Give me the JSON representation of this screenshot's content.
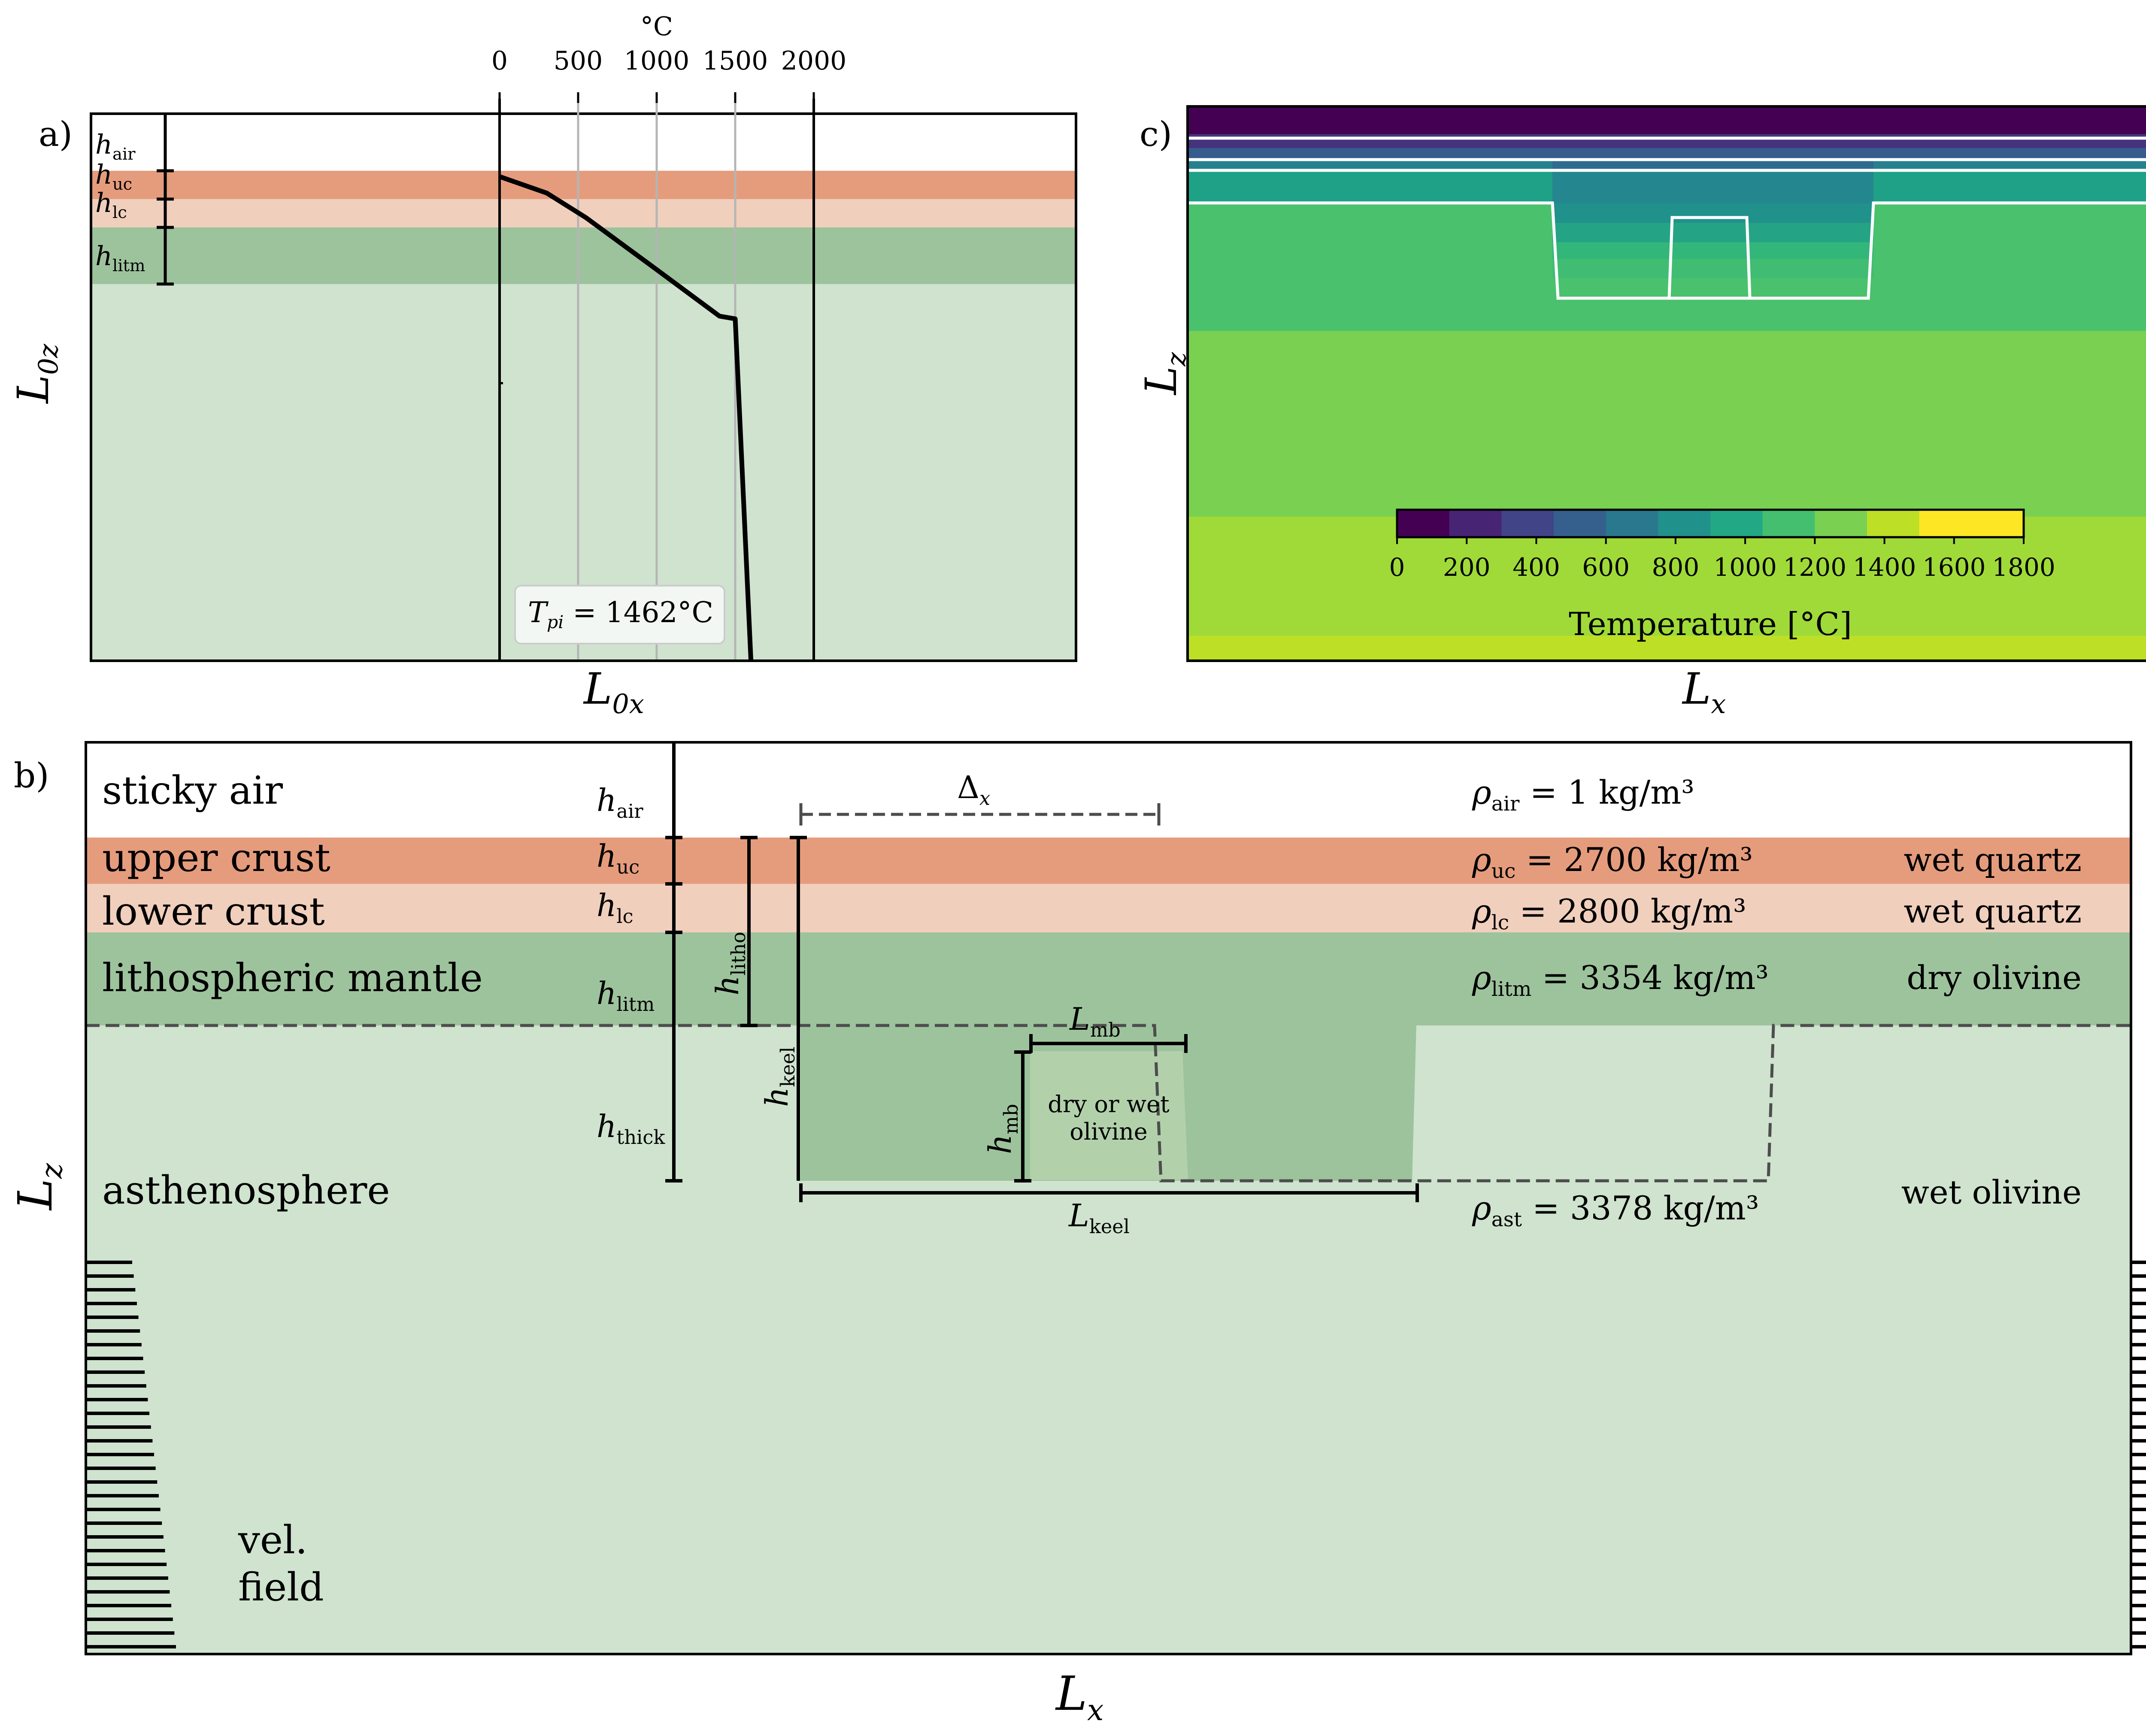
{
  "panel_a": {
    "label": "a)",
    "x_axis_label": "L",
    "x_axis_sub": "0x",
    "y_axis_label": "L",
    "y_axis_sub": "0z",
    "temp_unit": "°C",
    "temp_ticks": [
      "0",
      "500",
      "1000",
      "1500",
      "2000"
    ],
    "layer_labels": [
      {
        "main": "h",
        "sub": "air"
      },
      {
        "main": "h",
        "sub": "uc"
      },
      {
        "main": "h",
        "sub": "lc"
      },
      {
        "main": "h",
        "sub": "litm"
      }
    ],
    "legend_symbol": "T",
    "legend_sub": "pi",
    "legend_value": " = 1462°C",
    "temperature_profile": {
      "temperature_c": [
        0,
        300,
        550,
        1000,
        1400,
        1500,
        1600
      ],
      "depth_fraction": [
        0.115,
        0.145,
        0.19,
        0.285,
        0.37,
        0.375,
        1.0
      ]
    }
  },
  "panel_b": {
    "label": "b)",
    "x_axis_label": "L",
    "x_axis_sub": "x",
    "y_axis_label": "L",
    "y_axis_sub": "z",
    "layers": [
      {
        "name": "sticky air",
        "h": "h",
        "h_sub": "air",
        "rho_sub": "air",
        "rho_value": " = 1 kg/m³",
        "rheology": "",
        "color": "#ffffff"
      },
      {
        "name": "upper crust",
        "h": "h",
        "h_sub": "uc",
        "rho_sub": "uc",
        "rho_value": " = 2700 kg/m³",
        "rheology": "wet quartz",
        "color": "#e59c7d"
      },
      {
        "name": "lower crust",
        "h": "h",
        "h_sub": "lc",
        "rho_sub": "lc",
        "rho_value": " = 2800 kg/m³",
        "rheology": "wet quartz",
        "color": "#f1cfbd"
      },
      {
        "name": "lithospheric mantle",
        "h": "h",
        "h_sub": "litm",
        "rho_sub": "litm",
        "rho_value": " = 3354 kg/m³",
        "rheology": "dry olivine",
        "color": "#9dc39d"
      },
      {
        "name": "asthenosphere",
        "h": "",
        "h_sub": "",
        "rho_sub": "ast",
        "rho_value": " = 3378 kg/m³",
        "rheology": "wet olivine",
        "color": "#cfe3cf"
      }
    ],
    "rho_symbol": "ρ",
    "h_thick": {
      "main": "h",
      "sub": "thick"
    },
    "h_litho": {
      "main": "h",
      "sub": "litho"
    },
    "h_keel": {
      "main": "h",
      "sub": "keel"
    },
    "h_mb": {
      "main": "h",
      "sub": "mb"
    },
    "L_mb": {
      "main": "L",
      "sub": "mb"
    },
    "L_keel": {
      "main": "L",
      "sub": "keel"
    },
    "delta_x": {
      "main": "Δ",
      "sub": "x"
    },
    "mb_text_line1": "dry or wet",
    "mb_text_line2": "olivine",
    "vel_line1": "vel.",
    "vel_line2": "field"
  },
  "panel_c": {
    "label": "c)",
    "x_axis_label": "L",
    "x_axis_sub": "x",
    "y_axis_label": "L",
    "y_axis_sub": "z",
    "colorbar_ticks": [
      "0",
      "200",
      "400",
      "600",
      "800",
      "1000",
      "1200",
      "1400",
      "1600",
      "1800"
    ],
    "colorbar_label": "Temperature [°C]",
    "colorbar_colors": [
      "#440154",
      "#482475",
      "#414487",
      "#355f8d",
      "#2a788e",
      "#21918c",
      "#22a884",
      "#44bf70",
      "#7ad151",
      "#bddf26",
      "#fde725",
      "#fde725"
    ],
    "outside_bands": [
      {
        "to": 0.05,
        "color": "#440154"
      },
      {
        "to": 0.075,
        "color": "#46337e"
      },
      {
        "to": 0.095,
        "color": "#365c8d"
      },
      {
        "to": 0.115,
        "color": "#27808e"
      },
      {
        "to": 0.175,
        "color": "#1fa187"
      },
      {
        "to": 0.405,
        "color": "#4ac16d"
      },
      {
        "to": 0.74,
        "color": "#7ad151"
      },
      {
        "to": 0.955,
        "color": "#a0da39"
      },
      {
        "to": 1.0,
        "color": "#bddf26"
      }
    ],
    "keel_bands": [
      {
        "to": 0.05,
        "color": "#440154"
      },
      {
        "to": 0.075,
        "color": "#46337e"
      },
      {
        "to": 0.095,
        "color": "#365c8d"
      },
      {
        "to": 0.115,
        "color": "#2f6b8e"
      },
      {
        "to": 0.175,
        "color": "#24868e"
      },
      {
        "to": 0.21,
        "color": "#21918c"
      },
      {
        "to": 0.245,
        "color": "#25a385"
      },
      {
        "to": 0.275,
        "color": "#33b67a"
      },
      {
        "to": 0.31,
        "color": "#40bd72"
      },
      {
        "to": 0.405,
        "color": "#4ac16d"
      },
      {
        "to": 0.74,
        "color": "#7ad151"
      },
      {
        "to": 0.955,
        "color": "#a0da39"
      },
      {
        "to": 1.0,
        "color": "#bddf26"
      }
    ]
  }
}
